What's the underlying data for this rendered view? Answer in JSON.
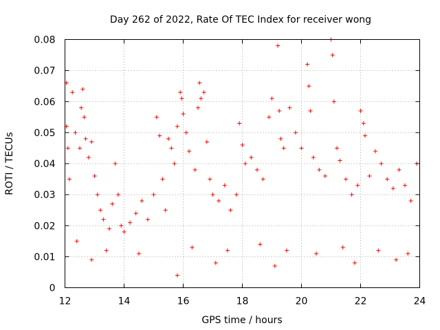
{
  "chart_data": {
    "type": "scatter",
    "title": "Day 262 of 2022, Rate Of TEC Index for receiver wong",
    "xlabel": "GPS time / hours",
    "ylabel": "ROTI / TECUs",
    "xlim": [
      12,
      24
    ],
    "ylim": [
      0,
      0.08
    ],
    "x_ticks": [
      12,
      14,
      16,
      18,
      20,
      22,
      24
    ],
    "x_tick_labels": [
      "12",
      "14",
      "16",
      "18",
      "20",
      "22",
      "24"
    ],
    "y_ticks": [
      0,
      0.01,
      0.02,
      0.03,
      0.04,
      0.05,
      0.06,
      0.07,
      0.08
    ],
    "y_tick_labels": [
      "0",
      "0.01",
      "0.02",
      "0.03",
      "0.04",
      "0.05",
      "0.06",
      "0.07",
      "0.08"
    ],
    "grid": true,
    "marker": "+",
    "color": "#ff0000",
    "series": [
      {
        "name": "ROTI",
        "x": [
          12.05,
          12.05,
          12.1,
          12.15,
          12.25,
          12.35,
          12.5,
          12.55,
          12.6,
          12.65,
          12.7,
          12.8,
          12.9,
          13.0,
          13.1,
          13.2,
          13.3,
          13.5,
          13.6,
          13.7,
          13.8,
          13.9,
          14.0,
          14.2,
          14.4,
          14.6,
          14.8,
          15.0,
          15.1,
          15.2,
          15.3,
          15.4,
          15.5,
          15.6,
          15.7,
          15.8,
          15.9,
          15.95,
          16.0,
          16.1,
          16.2,
          16.4,
          16.5,
          16.55,
          16.6,
          16.7,
          16.8,
          16.9,
          17.0,
          17.2,
          17.4,
          17.6,
          17.8,
          17.9,
          18.0,
          18.1,
          18.3,
          18.5,
          18.7,
          18.9,
          19.0,
          19.2,
          19.25,
          19.3,
          19.4,
          19.6,
          19.8,
          20.0,
          20.2,
          20.25,
          20.3,
          20.4,
          20.6,
          20.8,
          21.0,
          21.05,
          21.1,
          21.2,
          21.3,
          21.5,
          21.7,
          21.9,
          22.0,
          22.1,
          22.15,
          22.3,
          22.5,
          22.7,
          22.9,
          23.1,
          23.3,
          23.5,
          23.7,
          23.9,
          12.4,
          13.4,
          14.5,
          16.3,
          17.5,
          18.6,
          19.5,
          20.5,
          21.4,
          22.6,
          23.6,
          12.9,
          15.8,
          17.1,
          19.1,
          21.8,
          23.2
        ],
        "y": [
          0.066,
          0.052,
          0.045,
          0.035,
          0.063,
          0.05,
          0.045,
          0.058,
          0.064,
          0.055,
          0.048,
          0.042,
          0.047,
          0.036,
          0.03,
          0.025,
          0.022,
          0.019,
          0.027,
          0.04,
          0.03,
          0.02,
          0.018,
          0.021,
          0.024,
          0.028,
          0.022,
          0.03,
          0.055,
          0.049,
          0.035,
          0.025,
          0.048,
          0.045,
          0.04,
          0.052,
          0.063,
          0.061,
          0.056,
          0.05,
          0.044,
          0.038,
          0.058,
          0.066,
          0.061,
          0.063,
          0.047,
          0.035,
          0.03,
          0.028,
          0.033,
          0.025,
          0.03,
          0.053,
          0.046,
          0.04,
          0.042,
          0.038,
          0.035,
          0.055,
          0.061,
          0.078,
          0.057,
          0.048,
          0.045,
          0.058,
          0.05,
          0.045,
          0.072,
          0.065,
          0.057,
          0.042,
          0.038,
          0.036,
          0.08,
          0.075,
          0.06,
          0.045,
          0.041,
          0.035,
          0.03,
          0.033,
          0.057,
          0.053,
          0.049,
          0.036,
          0.044,
          0.04,
          0.035,
          0.032,
          0.038,
          0.033,
          0.028,
          0.04,
          0.015,
          0.012,
          0.011,
          0.013,
          0.012,
          0.014,
          0.012,
          0.011,
          0.013,
          0.012,
          0.011,
          0.009,
          0.004,
          0.008,
          0.007,
          0.008,
          0.009
        ]
      }
    ]
  }
}
